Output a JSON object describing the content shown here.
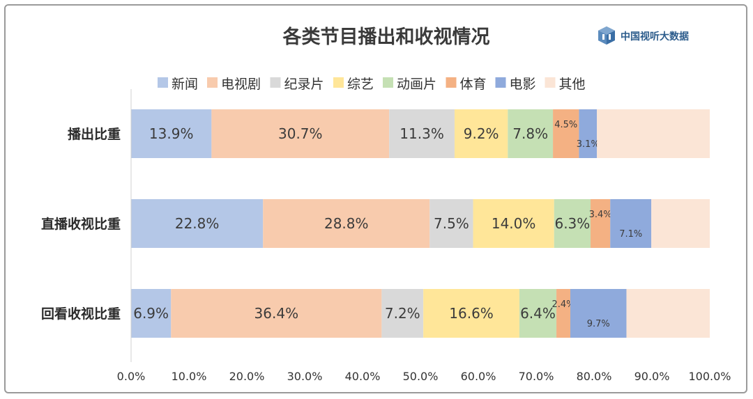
{
  "chart_data": {
    "type": "bar",
    "orientation": "horizontal",
    "stacked": true,
    "title": "各类节目播出和收视情况",
    "categories": [
      "播出比重",
      "直播收视比重",
      "回看收视比重"
    ],
    "series": [
      {
        "name": "新闻",
        "color": "#b4c7e7",
        "values": [
          13.9,
          22.8,
          6.9
        ]
      },
      {
        "name": "电视剧",
        "color": "#f8cbad",
        "values": [
          30.7,
          28.8,
          36.4
        ]
      },
      {
        "name": "纪录片",
        "color": "#d9d9d9",
        "values": [
          11.3,
          7.5,
          7.2
        ]
      },
      {
        "name": "综艺",
        "color": "#ffe699",
        "values": [
          9.2,
          14.0,
          16.6
        ]
      },
      {
        "name": "动画片",
        "color": "#c5e0b4",
        "values": [
          7.8,
          6.3,
          6.4
        ]
      },
      {
        "name": "体育",
        "color": "#f4b183",
        "values": [
          4.5,
          3.4,
          2.4
        ]
      },
      {
        "name": "电影",
        "color": "#8faadc",
        "values": [
          3.1,
          7.1,
          9.7
        ]
      },
      {
        "name": "其他",
        "color": "#fbe5d6",
        "values": [
          19.5,
          10.1,
          14.4
        ]
      }
    ],
    "data_labels": [
      [
        "13.9%",
        "30.7%",
        "11.3%",
        "9.2%",
        "7.8%",
        "4.5%",
        "3.1%",
        ""
      ],
      [
        "22.8%",
        "28.8%",
        "7.5%",
        "14.0%",
        "6.3%",
        "3.4%",
        "7.1%",
        ""
      ],
      [
        "6.9%",
        "36.4%",
        "7.2%",
        "16.6%",
        "6.4%",
        "2.4%",
        "9.7%",
        ""
      ]
    ],
    "xlim": [
      0,
      100
    ],
    "xticks": [
      "0.0%",
      "10.0%",
      "20.0%",
      "30.0%",
      "40.0%",
      "50.0%",
      "60.0%",
      "70.0%",
      "80.0%",
      "90.0%",
      "100.0%"
    ],
    "legend_position": "top",
    "grid": false
  },
  "brand": {
    "label": "中国视听大数据",
    "icon": "cube-icon",
    "color": "#2c5c8c"
  }
}
